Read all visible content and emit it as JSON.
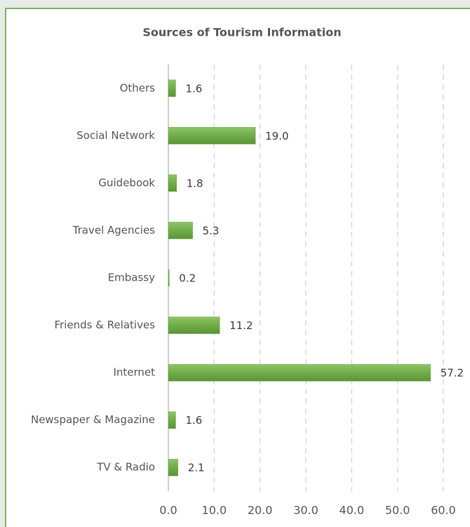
{
  "chart_data": {
    "type": "bar",
    "orientation": "horizontal",
    "title": "Sources of Tourism Information",
    "categories": [
      "Others",
      "Social Network",
      "Guidebook",
      "Travel Agencies",
      "Embassy",
      "Friends & Relatives",
      "Internet",
      "Newspaper & Magazine",
      "TV & Radio"
    ],
    "values": [
      1.6,
      19.0,
      1.8,
      5.3,
      0.2,
      11.2,
      57.2,
      1.6,
      2.1
    ],
    "value_labels": [
      "1.6",
      "19.0",
      "1.8",
      "5.3",
      "0.2",
      "11.2",
      "57.2",
      "1.6",
      "2.1"
    ],
    "color": "#70ad47",
    "xlim": [
      0,
      60
    ],
    "xticks": [
      {
        "value": 0,
        "label": "0.0"
      },
      {
        "value": 10,
        "label": "10.0"
      },
      {
        "value": 20,
        "label": "20.0"
      },
      {
        "value": 30,
        "label": "30.0"
      },
      {
        "value": 40,
        "label": "40.0"
      },
      {
        "value": 50,
        "label": "50.0"
      },
      {
        "value": 60,
        "label": "60.0"
      }
    ],
    "grid": true
  }
}
